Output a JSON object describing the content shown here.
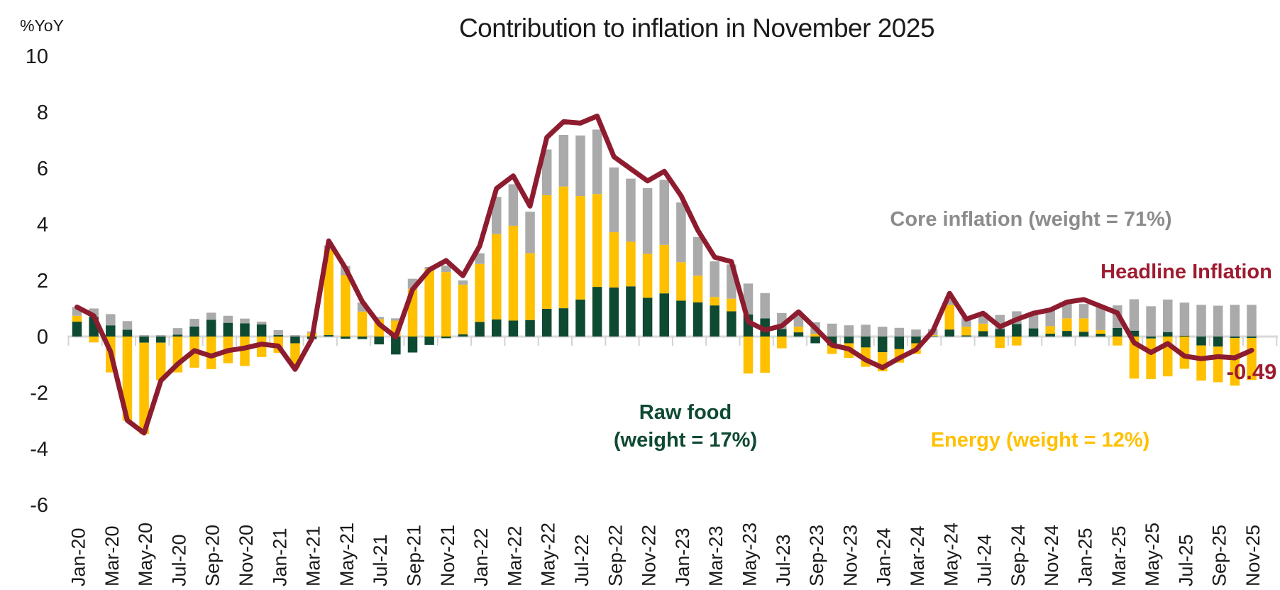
{
  "header": {
    "title": "Contribution to inflation in November 2025",
    "y_axis_unit": "%YoY"
  },
  "annotations": {
    "core_label": "Core inflation (weight = 71%)",
    "headline_label": "Headline Inflation",
    "raw_food_label_line1": "Raw food",
    "raw_food_label_line2": "(weight = 17%)",
    "energy_label": "Energy (weight = 12%)",
    "last_value_label": "-0.49"
  },
  "colors": {
    "raw_food": "#0E4A32",
    "energy": "#FFC000",
    "core": "#AAAAAA",
    "core_text": "#8C8C8C",
    "headline_line": "#8E1C2F",
    "headline_text": "#9E1B30",
    "axis_line": "#D9D9D9",
    "tick_line": "#D4D4D4",
    "text": "#1a1a1a"
  },
  "chart_data": {
    "type": "bar",
    "subtype": "stacked-bars-with-line",
    "title": "Contribution to inflation in November 2025",
    "ylabel": "%YoY",
    "ylim": [
      -6,
      10
    ],
    "y_ticks": [
      10,
      8,
      6,
      4,
      2,
      0,
      -2,
      -4,
      -6
    ],
    "grid": "none",
    "legend_position": "floating-annotations",
    "categories": [
      "Jan-20",
      "Feb-20",
      "Mar-20",
      "Apr-20",
      "May-20",
      "Jun-20",
      "Jul-20",
      "Aug-20",
      "Sep-20",
      "Oct-20",
      "Nov-20",
      "Dec-20",
      "Jan-21",
      "Feb-21",
      "Mar-21",
      "Apr-21",
      "May-21",
      "Jun-21",
      "Jul-21",
      "Aug-21",
      "Sep-21",
      "Oct-21",
      "Nov-21",
      "Dec-21",
      "Jan-22",
      "Feb-22",
      "Mar-22",
      "Apr-22",
      "May-22",
      "Jun-22",
      "Jul-22",
      "Aug-22",
      "Sep-22",
      "Oct-22",
      "Nov-22",
      "Dec-22",
      "Jan-23",
      "Feb-23",
      "Mar-23",
      "Apr-23",
      "May-23",
      "Jun-23",
      "Jul-23",
      "Aug-23",
      "Sep-23",
      "Oct-23",
      "Nov-23",
      "Dec-23",
      "Jan-24",
      "Feb-24",
      "Mar-24",
      "Apr-24",
      "May-24",
      "Jun-24",
      "Jul-24",
      "Aug-24",
      "Sep-24",
      "Oct-24",
      "Nov-24",
      "Dec-24",
      "Jan-25",
      "Feb-25",
      "Mar-25",
      "Apr-25",
      "May-25",
      "Jun-25",
      "Jul-25",
      "Aug-25",
      "Sep-25",
      "Oct-25",
      "Nov-25"
    ],
    "x_tick_labels": [
      "Jan-20",
      "Mar-20",
      "May-20",
      "Jul-20",
      "Sep-20",
      "Nov-20",
      "Jan-21",
      "Mar-21",
      "May-21",
      "Jul-21",
      "Sep-21",
      "Nov-21",
      "Jan-22",
      "Mar-22",
      "May-22",
      "Jul-22",
      "Sep-22",
      "Nov-22",
      "Jan-23",
      "Mar-23",
      "May-23",
      "Jul-23",
      "Sep-23",
      "Nov-23",
      "Jan-24",
      "Mar-24",
      "May-24",
      "Jul-24",
      "Sep-24",
      "Nov-24",
      "Jan-25",
      "Mar-25",
      "May-25",
      "Jul-25",
      "Sep-25",
      "Nov-25"
    ],
    "series": [
      {
        "name": "Raw food",
        "legend": "Raw food (weight = 17%)",
        "type": "bar",
        "color": "#0E4A32",
        "values": [
          0.53,
          0.7,
          0.4,
          0.24,
          -0.22,
          -0.22,
          0.07,
          0.36,
          0.6,
          0.49,
          0.47,
          0.43,
          0.05,
          -0.24,
          -0.09,
          0.05,
          -0.08,
          -0.09,
          -0.28,
          -0.64,
          -0.57,
          -0.3,
          -0.06,
          0.08,
          0.52,
          0.61,
          0.57,
          0.59,
          0.99,
          1.01,
          1.32,
          1.77,
          1.75,
          1.79,
          1.38,
          1.54,
          1.28,
          1.22,
          1.11,
          0.9,
          0.79,
          0.65,
          0.27,
          0.15,
          -0.24,
          -0.32,
          -0.24,
          -0.39,
          -0.56,
          -0.45,
          -0.24,
          0.02,
          0.25,
          0.04,
          0.19,
          0.27,
          0.45,
          0.29,
          0.1,
          0.2,
          0.17,
          0.1,
          0.31,
          0.21,
          -0.07,
          0.16,
          0.03,
          -0.32,
          -0.36,
          -0.05,
          -0.05
        ]
      },
      {
        "name": "Energy",
        "legend": "Energy (weight = 12%)",
        "type": "bar",
        "color": "#FFC000",
        "values": [
          0.21,
          -0.21,
          -1.28,
          -3.0,
          -3.25,
          -1.34,
          -1.28,
          -1.11,
          -1.16,
          -0.95,
          -1.05,
          -0.73,
          -0.58,
          -0.86,
          0.13,
          3.05,
          2.19,
          0.89,
          0.62,
          0.57,
          1.7,
          2.41,
          2.3,
          1.77,
          2.07,
          3.04,
          3.38,
          2.38,
          4.05,
          4.34,
          3.69,
          3.31,
          1.97,
          1.59,
          1.57,
          1.73,
          1.37,
          0.95,
          0.3,
          0.45,
          -1.32,
          -1.29,
          -0.42,
          0.2,
          0.1,
          -0.3,
          -0.52,
          -0.69,
          -0.68,
          -0.48,
          -0.38,
          0.03,
          0.88,
          0.31,
          0.27,
          -0.41,
          -0.32,
          0.0,
          0.27,
          0.45,
          0.48,
          0.13,
          -0.32,
          -1.5,
          -1.45,
          -1.42,
          -1.15,
          -1.25,
          -1.27,
          -1.7,
          -1.5
        ]
      },
      {
        "name": "Core inflation",
        "legend": "Core inflation (weight = 71%)",
        "type": "bar",
        "color": "#AAAAAA",
        "values": [
          0.31,
          0.3,
          0.4,
          0.31,
          0.05,
          0.05,
          0.23,
          0.27,
          0.25,
          0.25,
          0.17,
          0.1,
          0.18,
          0.05,
          0.05,
          0.15,
          0.33,
          0.32,
          0.08,
          0.08,
          0.36,
          0.07,
          0.23,
          0.15,
          0.38,
          1.33,
          1.48,
          1.48,
          1.63,
          1.84,
          2.16,
          2.3,
          2.31,
          2.25,
          2.34,
          2.32,
          2.13,
          1.38,
          1.27,
          1.22,
          1.1,
          0.9,
          0.57,
          0.42,
          0.41,
          0.46,
          0.4,
          0.42,
          0.35,
          0.31,
          0.25,
          0.22,
          0.19,
          0.32,
          0.39,
          0.5,
          0.45,
          0.53,
          0.6,
          0.53,
          0.51,
          0.87,
          0.8,
          1.12,
          1.08,
          1.16,
          1.18,
          1.13,
          1.1,
          1.13,
          1.13
        ]
      },
      {
        "name": "Headline Inflation",
        "legend": "Headline Inflation",
        "type": "line",
        "color": "#8E1C2F",
        "values": [
          1.05,
          0.74,
          -0.54,
          -2.99,
          -3.44,
          -1.57,
          -0.98,
          -0.5,
          -0.7,
          -0.5,
          -0.41,
          -0.27,
          -0.34,
          -1.17,
          -0.08,
          3.41,
          2.44,
          1.25,
          0.45,
          -0.02,
          1.68,
          2.38,
          2.71,
          2.17,
          3.23,
          5.28,
          5.73,
          4.65,
          7.1,
          7.66,
          7.61,
          7.86,
          6.41,
          5.98,
          5.55,
          5.89,
          5.02,
          3.79,
          2.83,
          2.67,
          0.53,
          0.23,
          0.38,
          0.88,
          0.3,
          -0.31,
          -0.44,
          -0.83,
          -1.11,
          -0.77,
          -0.47,
          0.19,
          1.54,
          0.62,
          0.83,
          0.35,
          0.61,
          0.83,
          0.95,
          1.23,
          1.32,
          1.08,
          0.84,
          -0.22,
          -0.57,
          -0.25,
          -0.7,
          -0.79,
          -0.72,
          -0.76,
          -0.49
        ]
      }
    ],
    "end_value_label": -0.49
  }
}
